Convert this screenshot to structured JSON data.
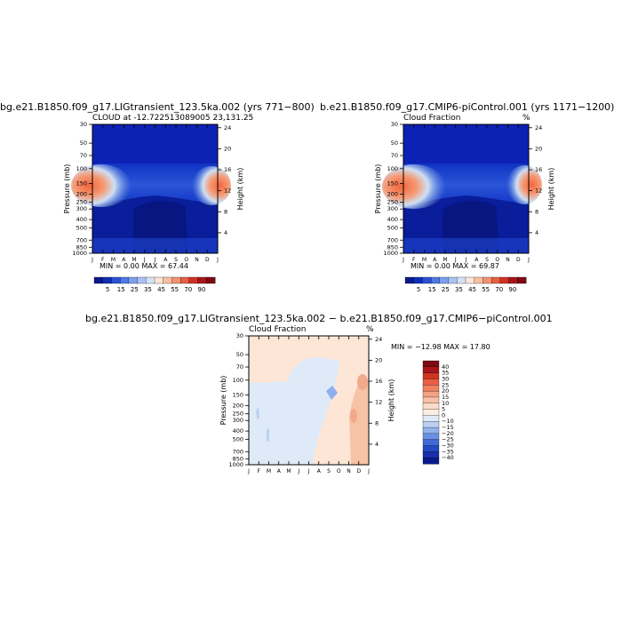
{
  "chart_data": [
    {
      "type": "heatmap",
      "title": "bg.e21.B1850.f09_g17.LIGtransient_123.5ka.002 (yrs 771−800)",
      "subtitle": "CLOUD at -12.722513089005 23,131.25",
      "ylabel": "Pressure (mb)",
      "ylabel_right": "Height (km)",
      "x_ticks": [
        "J",
        "F",
        "M",
        "A",
        "M",
        "J",
        "J",
        "A",
        "S",
        "O",
        "N",
        "D",
        "J"
      ],
      "y_ticks": [
        "30",
        "50",
        "70",
        "100",
        "150",
        "200",
        "250",
        "300",
        "400",
        "500",
        "700",
        "850",
        "1000"
      ],
      "y_ticks_right": [
        "24",
        "20",
        "16",
        "12",
        "8",
        "4"
      ],
      "min_max_text": "MIN =   0.00 MAX =  67.44",
      "colorbar_labels": [
        "5",
        "15",
        "25",
        "35",
        "45",
        "55",
        "70",
        "90"
      ]
    },
    {
      "type": "heatmap",
      "title": "b.e21.B1850.f09_g17.CMIP6-piControl.001 (yrs 1171−1200)",
      "subtitle": "Cloud Fraction",
      "subtitle_right": "%",
      "ylabel": "Pressure (mb)",
      "ylabel_right": "Height (km)",
      "x_ticks": [
        "J",
        "F",
        "M",
        "A",
        "M",
        "J",
        "J",
        "A",
        "S",
        "O",
        "N",
        "D",
        "J"
      ],
      "y_ticks": [
        "30",
        "50",
        "70",
        "100",
        "150",
        "200",
        "250",
        "300",
        "400",
        "500",
        "700",
        "850",
        "1000"
      ],
      "y_ticks_right": [
        "24",
        "20",
        "16",
        "12",
        "8",
        "4"
      ],
      "min_max_text": "MIN =   0.00 MAX =  69.87",
      "colorbar_labels": [
        "5",
        "15",
        "25",
        "35",
        "45",
        "55",
        "70",
        "90"
      ]
    },
    {
      "type": "heatmap",
      "title": "bg.e21.B1850.f09_g17.LIGtransient_123.5ka.002 − b.e21.B1850.f09_g17.CMIP6−piControl.001",
      "subtitle": "Cloud Fraction",
      "subtitle_right": "%",
      "ylabel": "Pressure (mb)",
      "ylabel_right": "Height (km)",
      "x_ticks": [
        "J",
        "F",
        "M",
        "A",
        "M",
        "J",
        "J",
        "A",
        "S",
        "O",
        "N",
        "D",
        "J"
      ],
      "y_ticks": [
        "30",
        "50",
        "70",
        "100",
        "150",
        "200",
        "250",
        "300",
        "400",
        "500",
        "700",
        "850",
        "1000"
      ],
      "y_ticks_right": [
        "24",
        "20",
        "16",
        "12",
        "8",
        "4"
      ],
      "min_max_text": "MIN = −12.98 MAX =  17.80",
      "colorbar_labels": [
        "40",
        "35",
        "30",
        "25",
        "20",
        "15",
        "10",
        "5",
        "0",
        "−10",
        "−15",
        "−20",
        "−25",
        "−30",
        "−35",
        "−40"
      ]
    }
  ]
}
